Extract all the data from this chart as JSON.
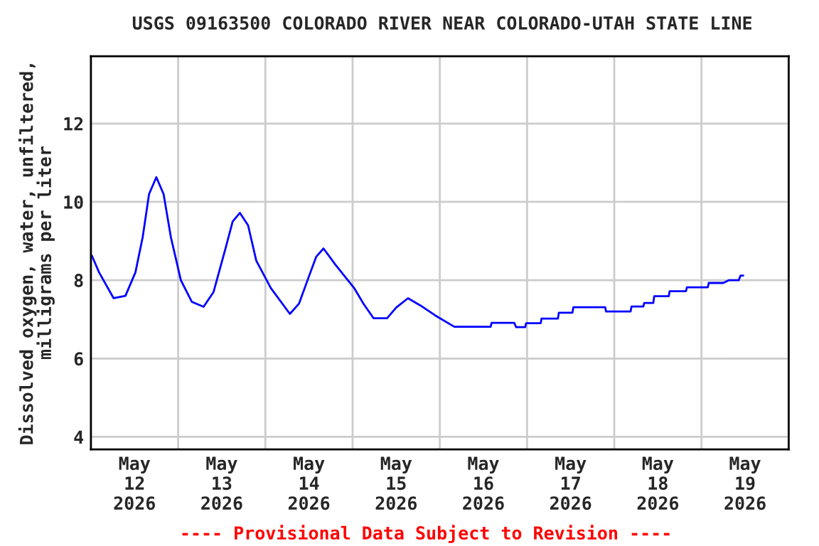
{
  "chart_data": {
    "type": "line",
    "title": "USGS 09163500 COLORADO RIVER NEAR COLORADO-UTAH STATE LINE",
    "ylabel": "Dissolved oxygen, water, unfiltered,\nmilligrams per liter",
    "annotations": [
      "---- Provisional Data Subject to Revision ----"
    ],
    "x": [
      "2026-05-12T00:15",
      "2026-05-12T02:15",
      "2026-05-12T06:15",
      "2026-05-12T09:30",
      "2026-05-12T12:15",
      "2026-05-12T14:15",
      "2026-05-12T16:00",
      "2026-05-12T18:00",
      "2026-05-12T20:00",
      "2026-05-12T22:00",
      "2026-05-13T00:45",
      "2026-05-13T03:45",
      "2026-05-13T07:00",
      "2026-05-13T09:45",
      "2026-05-13T13:00",
      "2026-05-13T15:00",
      "2026-05-13T17:00",
      "2026-05-13T19:15",
      "2026-05-13T21:30",
      "2026-05-14T01:30",
      "2026-05-14T06:45",
      "2026-05-14T09:15",
      "2026-05-14T12:00",
      "2026-05-14T14:00",
      "2026-05-14T16:00",
      "2026-05-14T19:15",
      "2026-05-15T00:30",
      "2026-05-15T03:00",
      "2026-05-15T05:45",
      "2026-05-15T09:30",
      "2026-05-15T12:00",
      "2026-05-15T15:15",
      "2026-05-15T18:45",
      "2026-05-15T22:45",
      "2026-05-16T04:00",
      "2026-05-16T14:00",
      "2026-05-16T14:15",
      "2026-05-16T20:30",
      "2026-05-16T21:00",
      "2026-05-16T23:30",
      "2026-05-16T23:45",
      "2026-05-17T03:45",
      "2026-05-17T04:00",
      "2026-05-17T08:30",
      "2026-05-17T08:45",
      "2026-05-17T12:30",
      "2026-05-17T12:45",
      "2026-05-17T21:30",
      "2026-05-17T21:45",
      "2026-05-18T04:30",
      "2026-05-18T04:45",
      "2026-05-18T08:00",
      "2026-05-18T08:15",
      "2026-05-18T10:45",
      "2026-05-18T11:00",
      "2026-05-18T15:00",
      "2026-05-18T15:15",
      "2026-05-18T19:45",
      "2026-05-18T20:00",
      "2026-05-19T01:45",
      "2026-05-19T02:00",
      "2026-05-19T06:00",
      "2026-05-19T07:30",
      "2026-05-19T10:15",
      "2026-05-19T10:45",
      "2026-05-19T11:30"
    ],
    "series": [
      {
        "color": "#0000ff",
        "values": [
          8.63,
          8.2,
          7.54,
          7.6,
          8.2,
          9.1,
          10.2,
          10.63,
          10.2,
          9.1,
          8.0,
          7.45,
          7.32,
          7.7,
          8.8,
          9.5,
          9.72,
          9.4,
          8.5,
          7.8,
          7.14,
          7.4,
          8.1,
          8.6,
          8.81,
          8.4,
          7.79,
          7.4,
          7.03,
          7.03,
          7.3,
          7.54,
          7.35,
          7.1,
          6.81,
          6.81,
          6.91,
          6.91,
          6.8,
          6.8,
          6.9,
          6.9,
          7.02,
          7.02,
          7.17,
          7.17,
          7.31,
          7.31,
          7.2,
          7.2,
          7.33,
          7.33,
          7.42,
          7.42,
          7.59,
          7.59,
          7.72,
          7.72,
          7.82,
          7.82,
          7.93,
          7.93,
          8.0,
          8.0,
          8.12,
          8.12
        ]
      }
    ],
    "xlim": [
      "2026-05-12",
      "2026-05-20"
    ],
    "xticks": [
      {
        "value": "2026-05-12",
        "label": null
      },
      {
        "value": "2026-05-12T12:00",
        "label": "May\n12\n2026"
      },
      {
        "value": "2026-05-13",
        "label": null
      },
      {
        "value": "2026-05-13T12:00",
        "label": "May\n13\n2026"
      },
      {
        "value": "2026-05-14",
        "label": null
      },
      {
        "value": "2026-05-14T12:00",
        "label": "May\n14\n2026"
      },
      {
        "value": "2026-05-15",
        "label": null
      },
      {
        "value": "2026-05-15T12:00",
        "label": "May\n15\n2026"
      },
      {
        "value": "2026-05-16",
        "label": null
      },
      {
        "value": "2026-05-16T12:00",
        "label": "May\n16\n2026"
      },
      {
        "value": "2026-05-17",
        "label": null
      },
      {
        "value": "2026-05-17T12:00",
        "label": "May\n17\n2026"
      },
      {
        "value": "2026-05-18",
        "label": null
      },
      {
        "value": "2026-05-18T12:00",
        "label": "May\n18\n2026"
      },
      {
        "value": "2026-05-19",
        "label": null
      },
      {
        "value": "2026-05-19T12:00",
        "label": "May\n19\n2026"
      },
      {
        "value": "2026-05-20",
        "label": null
      }
    ],
    "ylim": [
      3.68,
      13.72
    ],
    "yticks": [
      4,
      6,
      8,
      10,
      12
    ],
    "grid": true,
    "legend": false,
    "marker": "none",
    "line_style": "solid"
  }
}
